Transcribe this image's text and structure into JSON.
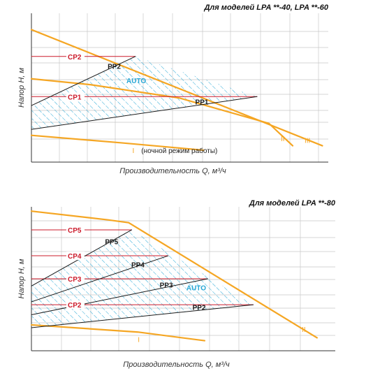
{
  "colors": {
    "orange": "#f5a623",
    "red": "#cc1b2b",
    "blue": "#29a8d6",
    "black": "#1a1a1a",
    "grid": "#c8c8c8"
  },
  "chart_data": [
    {
      "type": "line",
      "title": "Для моделей LPA **-40, LPA **-60",
      "xlabel": "Производительность Q, м³/ч",
      "ylabel": "Напор H, м",
      "grid": true,
      "auto_label": "AUTO",
      "night_mode_label": "(ночной режим работы)",
      "series": [
        {
          "name": "III",
          "kind": "speed",
          "points": [
            [
              0.0,
              0.89
            ],
            [
              0.98,
              0.11
            ]
          ]
        },
        {
          "name": "II",
          "kind": "speed",
          "points": [
            [
              0.0,
              0.56
            ],
            [
              0.2,
              0.52
            ],
            [
              0.5,
              0.43
            ],
            [
              0.8,
              0.26
            ],
            [
              0.88,
              0.11
            ]
          ]
        },
        {
          "name": "I",
          "kind": "speed",
          "points": [
            [
              0.0,
              0.18
            ],
            [
              0.3,
              0.13
            ],
            [
              0.58,
              0.08
            ]
          ]
        },
        {
          "name": "CP2",
          "kind": "cp",
          "points": [
            [
              0.0,
              0.71
            ],
            [
              0.35,
              0.71
            ]
          ]
        },
        {
          "name": "CP1",
          "kind": "cp",
          "points": [
            [
              0.0,
              0.44
            ],
            [
              0.76,
              0.44
            ]
          ]
        },
        {
          "name": "PP2",
          "kind": "pp",
          "points": [
            [
              0.0,
              0.38
            ],
            [
              0.35,
              0.71
            ]
          ]
        },
        {
          "name": "PP1",
          "kind": "pp",
          "points": [
            [
              0.0,
              0.22
            ],
            [
              0.76,
              0.44
            ]
          ]
        }
      ]
    },
    {
      "type": "line",
      "title": "Для моделей LPA **-80",
      "xlabel": "Производительность Q, м³/ч",
      "ylabel": "Напор H, м",
      "grid": true,
      "auto_label": "AUTO",
      "series": [
        {
          "name": "II",
          "kind": "speed",
          "points": [
            [
              0.0,
              0.97
            ],
            [
              0.25,
              0.91
            ],
            [
              0.32,
              0.89
            ],
            [
              0.94,
              0.09
            ]
          ]
        },
        {
          "name": "I",
          "kind": "speed",
          "points": [
            [
              0.0,
              0.18
            ],
            [
              0.35,
              0.13
            ],
            [
              0.57,
              0.07
            ]
          ]
        },
        {
          "name": "CP5",
          "kind": "cp",
          "points": [
            [
              0.0,
              0.84
            ],
            [
              0.33,
              0.84
            ]
          ]
        },
        {
          "name": "CP4",
          "kind": "cp",
          "points": [
            [
              0.0,
              0.66
            ],
            [
              0.45,
              0.66
            ]
          ]
        },
        {
          "name": "CP3",
          "kind": "cp",
          "points": [
            [
              0.0,
              0.5
            ],
            [
              0.58,
              0.5
            ]
          ]
        },
        {
          "name": "CP2",
          "kind": "cp",
          "points": [
            [
              0.0,
              0.32
            ],
            [
              0.73,
              0.32
            ]
          ]
        },
        {
          "name": "PP5",
          "kind": "pp",
          "points": [
            [
              0.0,
              0.45
            ],
            [
              0.33,
              0.84
            ]
          ]
        },
        {
          "name": "PP4",
          "kind": "pp",
          "points": [
            [
              0.0,
              0.34
            ],
            [
              0.45,
              0.66
            ]
          ]
        },
        {
          "name": "PP3",
          "kind": "pp",
          "points": [
            [
              0.0,
              0.25
            ],
            [
              0.58,
              0.5
            ]
          ]
        },
        {
          "name": "PP2",
          "kind": "pp",
          "points": [
            [
              0.0,
              0.16
            ],
            [
              0.73,
              0.32
            ]
          ]
        }
      ]
    }
  ]
}
